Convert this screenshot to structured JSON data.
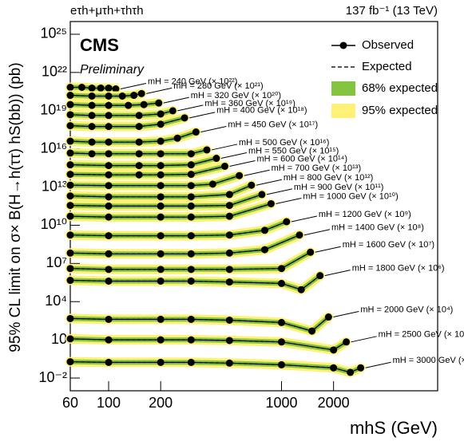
{
  "chart_data": {
    "type": "line",
    "channel": "eτh+μτh+τhτh",
    "lumi": "137 fb⁻¹ (13 TeV)",
    "experiment": "CMS",
    "status": "Preliminary",
    "y_label": "95% CL limit on σ× B(H→h(ττ) hS(bb))  (pb)",
    "x_label": "mhS (GeV)",
    "legend": [
      "Observed",
      "Expected",
      "68% expected",
      "95% expected"
    ],
    "band_colors": [
      "#85c441",
      "#fff176"
    ],
    "expected_color": "#555555",
    "log_x": true,
    "log_y": true,
    "xlim": [
      60,
      8000
    ],
    "xticks": [
      60,
      100,
      200,
      1000,
      2000
    ],
    "ylim": [
      0.001,
      1e+26
    ],
    "yticks": [
      {
        "value": 1e+25,
        "label": "10²⁵"
      },
      {
        "value": 1e+22,
        "label": "10²²"
      },
      {
        "value": 1e+19,
        "label": "10¹⁹"
      },
      {
        "value": 1e+16,
        "label": "10¹⁶"
      },
      {
        "value": 10000000000000.0,
        "label": "10¹³"
      },
      {
        "value": 10000000000.0,
        "label": "10¹⁰"
      },
      {
        "value": 10000000.0,
        "label": "10⁷"
      },
      {
        "value": 10000.0,
        "label": "10⁴"
      },
      10,
      {
        "value": 0.01,
        "label": "10⁻²"
      }
    ],
    "series": [
      {
        "name": "mH = 240 GeV (× 10²²)",
        "color": "#000000",
        "x": [
          60,
          70,
          80,
          90,
          100,
          110
        ],
        "values": [
          6.8e+20,
          6.8e+20,
          5.9e+20,
          5.9e+20,
          5.9e+20,
          5.1e+20
        ]
      },
      {
        "name": "mH = 280 GeV (× 10²¹)",
        "color": "#000000",
        "x": [
          60,
          80,
          100,
          120,
          140,
          155
        ],
        "values": [
          1.6e+20,
          1.4e+20,
          1.4e+20,
          1.4e+20,
          1.6e+20,
          2.2e+20
        ]
      },
      {
        "name": "mH = 320 GeV (× 10²⁰)",
        "color": "#000000",
        "x": [
          60,
          80,
          100,
          130,
          160,
          195
        ],
        "values": [
          3e+19,
          2.6e+19,
          2.6e+19,
          2.6e+19,
          3e+19,
          4e+19
        ]
      },
      {
        "name": "mH = 360 GeV (× 10¹⁹)",
        "color": "#000000",
        "x": [
          60,
          80,
          100,
          150,
          200,
          235
        ],
        "values": [
          4.8e+18,
          4.2e+18,
          4.2e+18,
          4.2e+18,
          5.5e+18,
          9.8e+18
        ]
      },
      {
        "name": "mH = 400 GeV (× 10¹⁸)",
        "color": "#000000",
        "x": [
          60,
          80,
          100,
          150,
          200,
          275
        ],
        "values": [
          6.6e+17,
          5.7e+17,
          5.7e+17,
          5.7e+17,
          8.7e+17,
          2.7e+18
        ]
      },
      {
        "name": "mH = 450 GeV (× 10¹⁷)",
        "color": "#000000",
        "x": [
          60,
          80,
          100,
          150,
          200,
          250,
          320
        ],
        "values": [
          4e+16,
          3.4e+16,
          3.4e+16,
          3.4e+16,
          4e+16,
          6.9e+16,
          2.1e+17
        ]
      },
      {
        "name": "mH = 500 GeV (× 10¹⁶)",
        "color": "#000000",
        "x": [
          60,
          80,
          100,
          150,
          200,
          300,
          370
        ],
        "values": [
          4700000000000000.0,
          4100000000000000.0,
          4100000000000000.0,
          4100000000000000.0,
          4100000000000000.0,
          4100000000000000.0,
          8300000000000000.0
        ]
      },
      {
        "name": "mH = 550 GeV (× 10¹⁵)",
        "color": "#000000",
        "x": [
          60,
          100,
          150,
          200,
          300,
          420
        ],
        "values": [
          560000000000000.0,
          490000000000000.0,
          490000000000000.0,
          490000000000000.0,
          560000000000000.0,
          1800000000000000.0
        ]
      },
      {
        "name": "mH = 600 GeV (× 10¹⁴)",
        "color": "#000000",
        "x": [
          60,
          100,
          150,
          200,
          300,
          470
        ],
        "values": [
          100000000000000.0,
          91000000000000.0,
          91000000000000.0,
          91000000000000.0,
          100000000000000.0,
          430000000000000.0
        ]
      },
      {
        "name": "mH = 700 GeV (× 10¹³)",
        "color": "#000000",
        "x": [
          60,
          100,
          200,
          300,
          400,
          570
        ],
        "values": [
          14000000000000.0,
          13000000000000.0,
          13000000000000.0,
          13000000000000.0,
          17000000000000.0,
          79000000000000.0
        ]
      },
      {
        "name": "mH = 800 GeV (× 10¹²)",
        "color": "#000000",
        "x": [
          60,
          100,
          200,
          300,
          500,
          670
        ],
        "values": [
          2000000000000.0,
          1700000000000.0,
          1700000000000.0,
          1700000000000.0,
          2600000000000.0,
          14000000000000.0
        ]
      },
      {
        "name": "mH = 900 GeV (× 10¹¹)",
        "color": "#000000",
        "x": [
          60,
          100,
          200,
          300,
          500,
          770
        ],
        "values": [
          360000000000.0,
          320000000000.0,
          320000000000.0,
          320000000000.0,
          360000000000.0,
          2600000000000.0
        ]
      },
      {
        "name": "mH = 1000 GeV (× 10¹⁰)",
        "color": "#000000",
        "x": [
          60,
          100,
          200,
          300,
          500,
          870
        ],
        "values": [
          51000000000.0,
          44000000000.0,
          44000000000.0,
          44000000000.0,
          51000000000.0,
          490000000000.0
        ]
      },
      {
        "name": "mH = 1200 GeV (× 10⁹)",
        "color": "#000000",
        "x": [
          60,
          100,
          200,
          300,
          500,
          800,
          1070
        ],
        "values": [
          1700000000.0,
          1500000000.0,
          1500000000.0,
          1500000000.0,
          1700000000.0,
          4000000000.0,
          19000000000.0
        ]
      },
      {
        "name": "mH = 1400 GeV (× 10⁸)",
        "color": "#000000",
        "x": [
          60,
          100,
          200,
          300,
          500,
          800,
          1270
        ],
        "values": [
          66000000.0,
          57000000.0,
          57000000.0,
          57000000.0,
          66000000.0,
          120000000.0,
          1700000000.0
        ]
      },
      {
        "name": "mH = 1600 GeV (× 10⁷)",
        "color": "#000000",
        "x": [
          60,
          100,
          200,
          300,
          500,
          1000,
          1470
        ],
        "values": [
          4000000.0,
          3400000.0,
          3400000.0,
          3400000.0,
          3400000.0,
          4000000.0,
          76000000.0
        ]
      },
      {
        "name": "mH = 1800 GeV (× 10⁶)",
        "color": "#000000",
        "x": [
          60,
          100,
          200,
          300,
          500,
          1000,
          1300,
          1670
        ],
        "values": [
          470000.0,
          410000.0,
          410000.0,
          410000.0,
          350000.0,
          270000.0,
          87000.0,
          1100000.0
        ]
      },
      {
        "name": "mH = 2000 GeV (× 10⁴)",
        "color": "#000000",
        "x": [
          60,
          100,
          200,
          300,
          500,
          1000,
          1500,
          1870
        ],
        "values": [
          470,
          410,
          410,
          410,
          350,
          230,
          49,
          620
        ]
      },
      {
        "name": "mH = 2500 GeV (× 10²)",
        "color": "#000000",
        "x": [
          60,
          100,
          200,
          300,
          500,
          1000,
          2000,
          2370
        ],
        "values": [
          12,
          10,
          10,
          10,
          8.9,
          6.8,
          1.6,
          6.8
        ]
      },
      {
        "name": "mH = 3000 GeV (× 10⁰)",
        "color": "#000000",
        "x": [
          60,
          100,
          200,
          300,
          500,
          1000,
          2000,
          2500,
          2870
        ],
        "values": [
          0.19,
          0.17,
          0.17,
          0.17,
          0.15,
          0.11,
          0.063,
          0.028,
          0.063
        ]
      }
    ]
  }
}
